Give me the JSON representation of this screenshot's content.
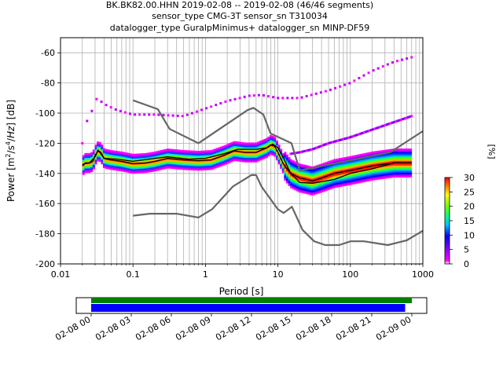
{
  "title": {
    "line1": "BK.BK82.00.HHN   2019-02-08 -- 2019-02-08  (46/46 segments)",
    "line2": "sensor_type CMG-3T sensor_sn T310034",
    "line3": "datalogger_type GuralpMinimus+ datalogger_sn MINP-DF59"
  },
  "chart_data": {
    "type": "heatmap",
    "xlabel": "Period [s]",
    "ylabel": "Power [m²/s⁴/Hz] [dB]",
    "xscale": "log",
    "xlim": [
      0.01,
      1000
    ],
    "ylim": [
      -200,
      -50
    ],
    "grid": true,
    "x_ticks": [
      "0.01",
      "0.1",
      "1",
      "10",
      "100",
      "1000"
    ],
    "y_ticks": [
      "-200",
      "-180",
      "-160",
      "-140",
      "-120",
      "-100",
      "-80",
      "-60"
    ],
    "noise_model_high": {
      "name": "NHNM",
      "period": [
        0.1,
        0.22,
        0.32,
        0.8,
        3.8,
        4.6,
        6.3,
        7.9,
        15.4,
        20,
        354.8,
        1000
      ],
      "power": [
        -91.5,
        -97.4,
        -110.5,
        -120,
        -98,
        -96.5,
        -101,
        -113.5,
        -120,
        -138,
        -126,
        -112
      ]
    },
    "noise_model_low": {
      "name": "NLNM",
      "period": [
        0.1,
        0.17,
        0.4,
        0.8,
        1.24,
        2.4,
        4.3,
        5,
        6,
        10,
        12,
        15.6,
        21.9,
        31.6,
        45,
        70,
        101,
        154,
        328,
        600,
        1000
      ],
      "power": [
        -168,
        -166.7,
        -166.7,
        -169.2,
        -163.7,
        -148.6,
        -141.1,
        -141.1,
        -149,
        -163.8,
        -166.2,
        -162.1,
        -177.5,
        -185,
        -187.5,
        -187.5,
        -185,
        -185,
        -187.5,
        -184.4,
        -178
      ]
    },
    "mode_curve": {
      "name": "mode",
      "period": [
        0.02,
        0.022,
        0.025,
        0.028,
        0.03,
        0.033,
        0.036,
        0.04,
        0.05,
        0.07,
        0.1,
        0.15,
        0.2,
        0.3,
        0.5,
        0.8,
        1.2,
        1.8,
        2.5,
        3.5,
        5,
        7,
        8,
        9,
        10,
        12,
        15,
        20,
        25,
        30,
        40,
        60,
        100,
        200,
        400,
        700
      ],
      "power": [
        -135,
        -133,
        -133,
        -132,
        -128,
        -125,
        -126,
        -130,
        -131,
        -132,
        -133.5,
        -133,
        -132,
        -130,
        -131,
        -131.5,
        -131,
        -128,
        -125,
        -126,
        -126,
        -123,
        -121,
        -122,
        -126,
        -134,
        -140,
        -143,
        -144,
        -145,
        -143,
        -140,
        -138,
        -135,
        -133,
        -133
      ]
    },
    "mean_curve": {
      "name": "mean",
      "period": [
        0.02,
        0.025,
        0.03,
        0.033,
        0.04,
        0.06,
        0.1,
        0.2,
        0.3,
        0.6,
        1,
        1.8,
        2.8,
        5,
        7,
        8.5,
        10,
        12,
        15,
        20,
        30,
        60,
        100,
        200,
        400,
        700
      ],
      "power": [
        -134,
        -133,
        -129,
        -124.5,
        -130,
        -130.5,
        -132,
        -130,
        -129,
        -130.5,
        -130,
        -127,
        -124,
        -124,
        -123,
        -120.5,
        -123,
        -130,
        -140,
        -146,
        -146.5,
        -144,
        -140,
        -137,
        -133,
        -133
      ]
    },
    "upper_scatter_band": {
      "period": [
        0.02,
        0.022,
        0.025,
        0.03,
        0.032,
        0.04,
        0.06,
        0.1,
        0.2,
        0.5,
        1,
        2,
        3,
        4,
        6,
        10,
        20,
        50,
        100,
        200,
        400,
        700
      ],
      "power": [
        -120,
        -107,
        -103,
        -93,
        -90,
        -94,
        -98,
        -101,
        -101,
        -102,
        -97,
        -92,
        -90,
        -88.5,
        -88,
        -90,
        -90,
        -85,
        -80,
        -72,
        -66,
        -63
      ]
    },
    "mid_scatter_band": {
      "period": [
        15,
        20,
        30,
        50,
        100,
        200,
        400,
        700
      ],
      "power": [
        -127,
        -126,
        -124,
        -120,
        -116,
        -111,
        -106,
        -102
      ]
    },
    "colorbar": {
      "label": "[%]",
      "ticks": [
        "0",
        "5",
        "10",
        "15",
        "20",
        "25",
        "30"
      ],
      "range": [
        0,
        30
      ]
    },
    "time_axis": {
      "ticks": [
        "02-08 00",
        "02-08 03",
        "02-08 06",
        "02-08 09",
        "02-08 12",
        "02-08 15",
        "02-08 18",
        "02-08 21",
        "02-09 00"
      ],
      "coverage": {
        "start_hour": 0.0,
        "end_hour": 24.0
      },
      "segments": {
        "start_hour": 0.0,
        "end_hour": 23.5
      }
    },
    "colors": {
      "model": "#666666",
      "mode": "#000000",
      "mean": "#000000",
      "coverage_bar": "#008000",
      "segment_bar": "#0000ff",
      "grid": "#b0b0b0"
    }
  }
}
